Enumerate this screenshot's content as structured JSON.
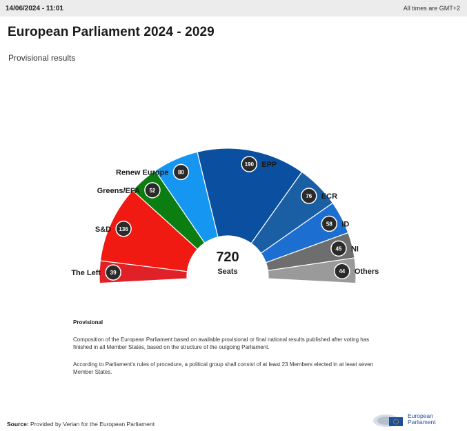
{
  "header": {
    "datetime": "14/06/2024 - 11:01",
    "timezone": "All times are GMT+2"
  },
  "title": "European Parliament 2024 - 2029",
  "subtitle": "Provisional results",
  "chart_data": {
    "type": "hemicycle",
    "total": "720",
    "total_label": "Seats",
    "groups": [
      {
        "name": "The Left",
        "seats": 39,
        "color": "#e02228"
      },
      {
        "name": "S&D",
        "seats": 136,
        "color": "#f01a12"
      },
      {
        "name": "Greens/EFA",
        "seats": 52,
        "color": "#0c7d10"
      },
      {
        "name": "Renew Europe",
        "seats": 80,
        "color": "#1596f0"
      },
      {
        "name": "EPP",
        "seats": 190,
        "color": "#0a4fa0"
      },
      {
        "name": "ECR",
        "seats": 76,
        "color": "#1a5ea4"
      },
      {
        "name": "ID",
        "seats": 58,
        "color": "#1c6fd0"
      },
      {
        "name": "NI",
        "seats": 45,
        "color": "#6e6e6e"
      },
      {
        "name": "Others",
        "seats": 44,
        "color": "#9a9a9a"
      }
    ]
  },
  "notes": {
    "heading": "Provisional",
    "para1": "Composition of the European Parliament based on available provisional or final national results published after voting has finished in all Member States, based on the structure of the outgoing Parliament.",
    "para2": "According to Parliament's rules of procedure, a political group shall consist of at least 23 Members elected in at least seven Member States."
  },
  "source": {
    "label": "Source:",
    "text": "Provided by Verian for the European Parliament"
  },
  "logo": {
    "line1": "European",
    "line2": "Parliament"
  }
}
